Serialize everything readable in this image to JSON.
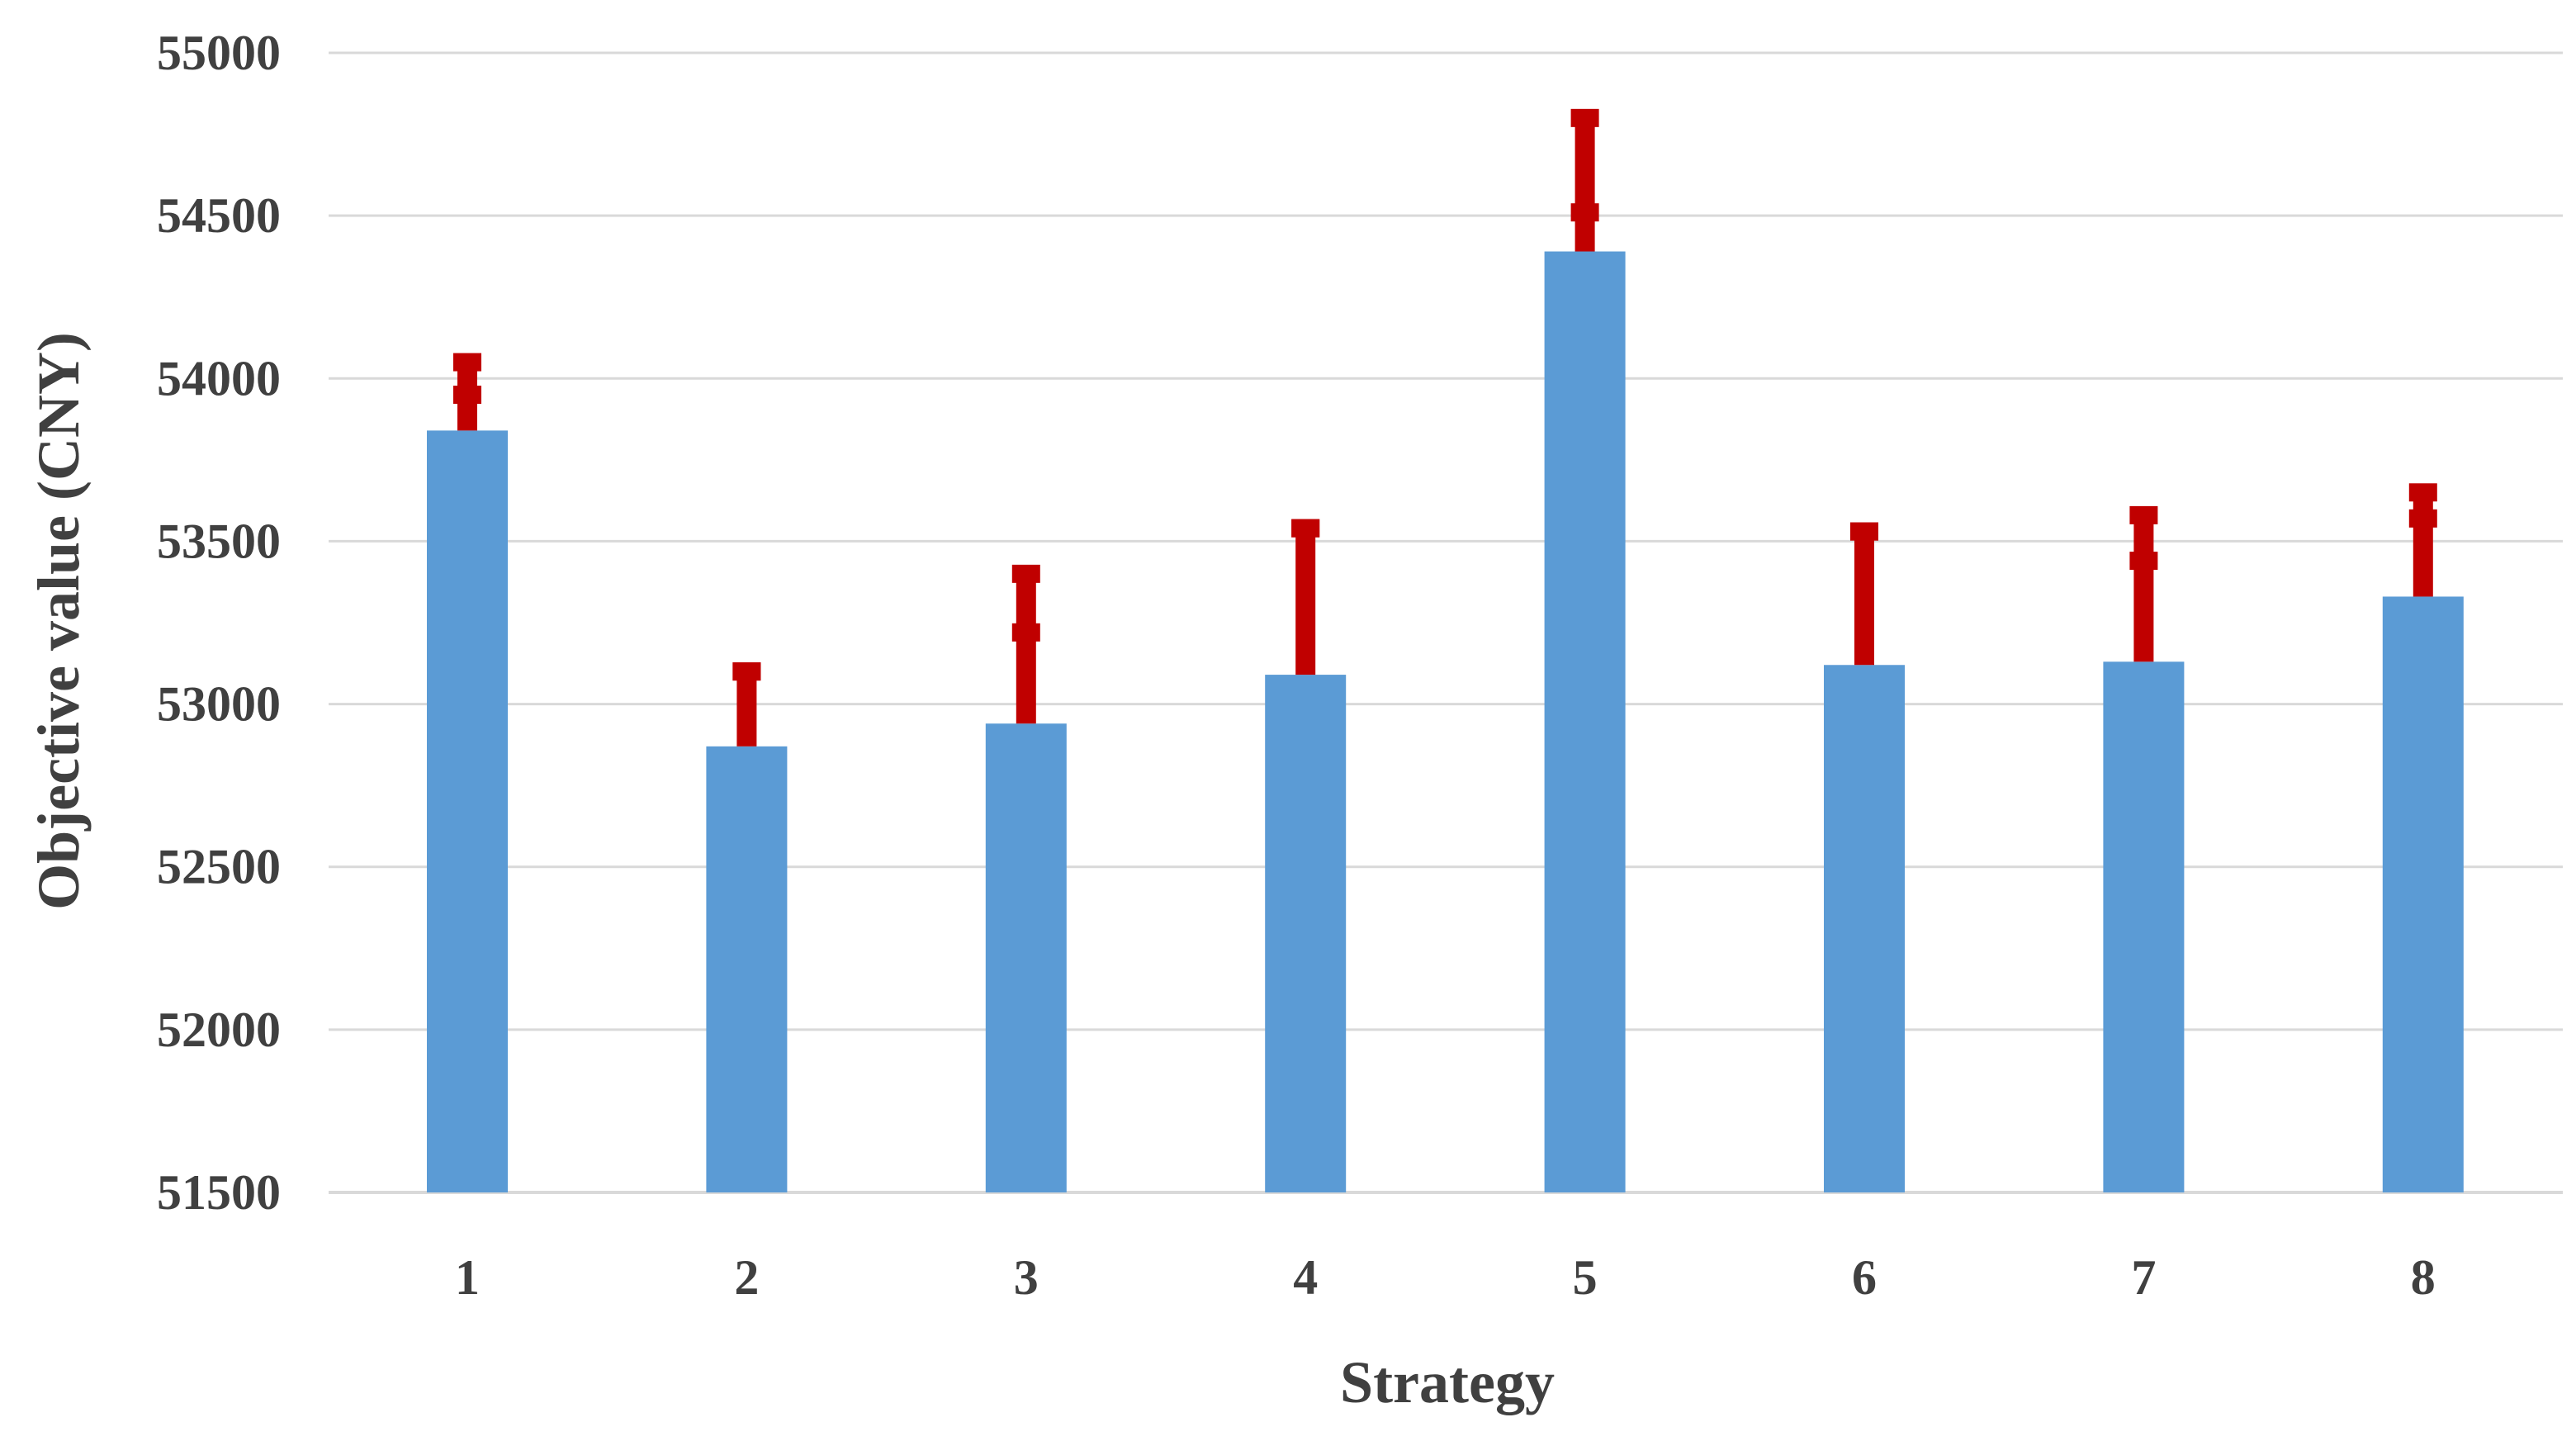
{
  "chart_data": {
    "type": "bar",
    "title": "",
    "xlabel": "Strategy",
    "ylabel": "Objective value (CNY)",
    "categories": [
      "1",
      "2",
      "3",
      "4",
      "5",
      "6",
      "7",
      "8"
    ],
    "values": [
      53840,
      52870,
      52940,
      53090,
      54390,
      53120,
      53130,
      53330
    ],
    "error_bars": {
      "upper": [
        54050,
        53100,
        53400,
        53540,
        54800,
        53530,
        53580,
        53650
      ],
      "markers": [
        [
          54050,
          53950
        ],
        [
          53100,
          53100
        ],
        [
          53400,
          53220
        ],
        [
          53540,
          53540
        ],
        [
          54800,
          54510
        ],
        [
          53530,
          53530
        ],
        [
          53580,
          53440
        ],
        [
          53650,
          53570
        ]
      ]
    },
    "ylim": [
      51500,
      55000
    ],
    "yticks": [
      "51500",
      "52000",
      "52500",
      "53000",
      "53500",
      "54000",
      "54500",
      "55000"
    ],
    "grid": true,
    "legend": "none",
    "colors": {
      "bar": "#5B9BD5",
      "error": "#C00000",
      "grid": "#D9D9D9"
    }
  }
}
